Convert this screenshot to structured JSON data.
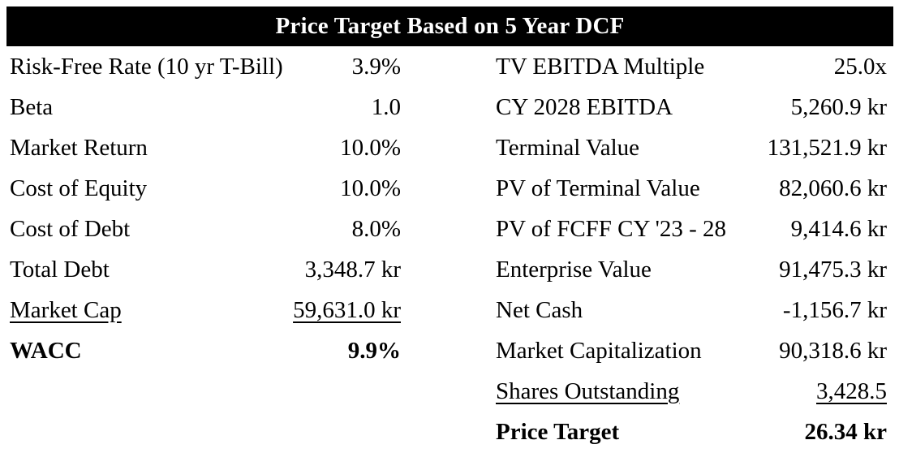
{
  "title": "Price Target Based on 5 Year DCF",
  "colors": {
    "header_bg": "#000000",
    "header_text": "#ffffff",
    "body_text": "#000000",
    "background": "#ffffff"
  },
  "left": {
    "rows": [
      {
        "label": "Risk-Free Rate (10 yr T-Bill)",
        "value": "3.9%"
      },
      {
        "label": "Beta",
        "value": "1.0"
      },
      {
        "label": "Market Return",
        "value": "10.0%"
      },
      {
        "label": "Cost of Equity",
        "value": "10.0%"
      },
      {
        "label": "Cost of Debt",
        "value": "8.0%"
      },
      {
        "label": "Total Debt",
        "value": "3,348.7 kr"
      },
      {
        "label": "Market Cap",
        "value": "59,631.0 kr",
        "emphasis": "underline"
      },
      {
        "label": "WACC",
        "value": "9.9%",
        "emphasis": "bold"
      }
    ]
  },
  "right": {
    "rows": [
      {
        "label": "TV EBITDA Multiple",
        "value": "25.0x"
      },
      {
        "label": "CY 2028 EBITDA",
        "value": "5,260.9 kr"
      },
      {
        "label": "Terminal Value",
        "value": "131,521.9 kr"
      },
      {
        "label": "PV of Terminal Value",
        "value": "82,060.6 kr"
      },
      {
        "label": "PV of FCFF CY '23 - 28",
        "value": "9,414.6 kr"
      },
      {
        "label": "Enterprise Value",
        "value": "91,475.3 kr"
      },
      {
        "label": "Net Cash",
        "value": "-1,156.7 kr"
      },
      {
        "label": "Market Capitalization",
        "value": "90,318.6 kr"
      },
      {
        "label": "Shares Outstanding",
        "value": "3,428.5",
        "emphasis": "underline"
      },
      {
        "label": "Price Target",
        "value": "26.34 kr",
        "emphasis": "bold"
      }
    ]
  }
}
